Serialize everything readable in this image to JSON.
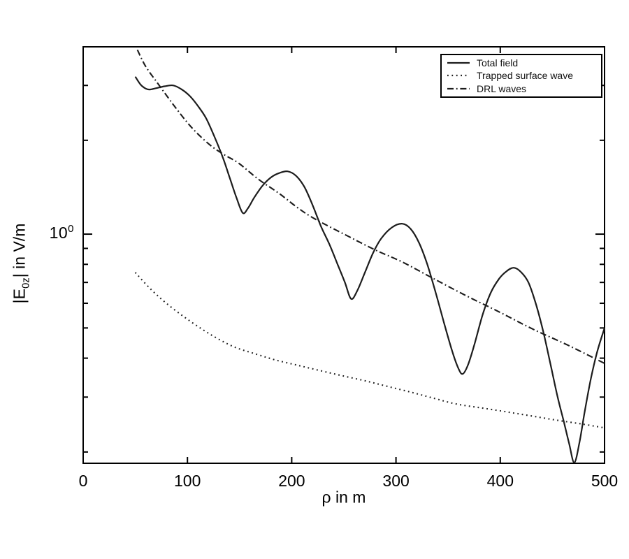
{
  "figure": {
    "background": "#ffffff",
    "axis_color": "#000000",
    "curve_color": "#1c1c1c"
  },
  "y_axis": {
    "tick_label": {
      "base": "10",
      "exponent": "0"
    },
    "label": {
      "prefix": "|E",
      "subscript": "0z",
      "suffix": "| in V/m"
    }
  },
  "x_axis": {
    "label": "ρ in m"
  },
  "chart_data": {
    "type": "line",
    "title": "",
    "xlabel": "ρ in m",
    "ylabel": "|E_0z| in V/m",
    "xscale": "linear",
    "yscale": "log",
    "xlim": [
      0,
      500
    ],
    "ylim": [
      0.184,
      3.99
    ],
    "x_ticks": [
      0,
      100,
      200,
      300,
      400,
      500
    ],
    "y_major_ticks": [
      1
    ],
    "y_minor_ticks": [
      0.2,
      0.3,
      0.4,
      0.5,
      0.6,
      0.7,
      0.8,
      0.9,
      2,
      3
    ],
    "grid": false,
    "legend_position": "top-right",
    "series": [
      {
        "name": "Total field",
        "style": "solid",
        "points": [
          [
            50,
            3.2
          ],
          [
            55,
            3.02
          ],
          [
            60,
            2.93
          ],
          [
            64,
            2.91
          ],
          [
            70,
            2.94
          ],
          [
            78,
            2.98
          ],
          [
            86,
            3.0
          ],
          [
            94,
            2.92
          ],
          [
            102,
            2.78
          ],
          [
            110,
            2.58
          ],
          [
            118,
            2.35
          ],
          [
            126,
            2.05
          ],
          [
            134,
            1.76
          ],
          [
            141,
            1.5
          ],
          [
            147,
            1.31
          ],
          [
            153,
            1.17
          ],
          [
            158,
            1.21
          ],
          [
            164,
            1.31
          ],
          [
            172,
            1.43
          ],
          [
            180,
            1.52
          ],
          [
            188,
            1.57
          ],
          [
            196,
            1.59
          ],
          [
            204,
            1.54
          ],
          [
            212,
            1.42
          ],
          [
            220,
            1.24
          ],
          [
            228,
            1.06
          ],
          [
            236,
            0.93
          ],
          [
            244,
            0.8
          ],
          [
            251,
            0.7
          ],
          [
            257,
            0.62
          ],
          [
            263,
            0.66
          ],
          [
            270,
            0.75
          ],
          [
            278,
            0.87
          ],
          [
            286,
            0.97
          ],
          [
            296,
            1.05
          ],
          [
            306,
            1.08
          ],
          [
            314,
            1.04
          ],
          [
            322,
            0.94
          ],
          [
            330,
            0.8
          ],
          [
            338,
            0.65
          ],
          [
            346,
            0.52
          ],
          [
            354,
            0.42
          ],
          [
            360,
            0.37
          ],
          [
            364,
            0.356
          ],
          [
            369,
            0.38
          ],
          [
            375,
            0.44
          ],
          [
            383,
            0.55
          ],
          [
            391,
            0.65
          ],
          [
            399,
            0.72
          ],
          [
            406,
            0.76
          ],
          [
            413,
            0.78
          ],
          [
            420,
            0.755
          ],
          [
            427,
            0.7
          ],
          [
            434,
            0.6
          ],
          [
            441,
            0.49
          ],
          [
            448,
            0.385
          ],
          [
            455,
            0.3
          ],
          [
            461,
            0.25
          ],
          [
            466,
            0.213
          ],
          [
            471,
            0.185
          ],
          [
            476,
            0.215
          ],
          [
            481,
            0.27
          ],
          [
            487,
            0.345
          ],
          [
            493,
            0.42
          ],
          [
            500,
            0.5
          ]
        ]
      },
      {
        "name": "Trapped surface wave",
        "style": "dotted",
        "points": [
          [
            50,
            0.753
          ],
          [
            64,
            0.67
          ],
          [
            79,
            0.603
          ],
          [
            96,
            0.545
          ],
          [
            113,
            0.498
          ],
          [
            129,
            0.462
          ],
          [
            146,
            0.433
          ],
          [
            165,
            0.413
          ],
          [
            184,
            0.395
          ],
          [
            205,
            0.38
          ],
          [
            227,
            0.365
          ],
          [
            249,
            0.351
          ],
          [
            271,
            0.338
          ],
          [
            293,
            0.324
          ],
          [
            316,
            0.31
          ],
          [
            337,
            0.297
          ],
          [
            358,
            0.285
          ],
          [
            382,
            0.277
          ],
          [
            406,
            0.269
          ],
          [
            430,
            0.261
          ],
          [
            454,
            0.253
          ],
          [
            478,
            0.246
          ],
          [
            500,
            0.239
          ]
        ]
      },
      {
        "name": "DRL waves",
        "style": "dashdot",
        "points": [
          [
            52,
            3.9
          ],
          [
            60,
            3.45
          ],
          [
            72,
            3.03
          ],
          [
            90,
            2.51
          ],
          [
            105,
            2.18
          ],
          [
            121,
            1.94
          ],
          [
            135,
            1.8
          ],
          [
            149,
            1.69
          ],
          [
            168,
            1.5
          ],
          [
            188,
            1.35
          ],
          [
            205,
            1.22
          ],
          [
            222,
            1.12
          ],
          [
            254,
            0.985
          ],
          [
            280,
            0.89
          ],
          [
            306,
            0.814
          ],
          [
            336,
            0.72
          ],
          [
            367,
            0.635
          ],
          [
            398,
            0.565
          ],
          [
            430,
            0.498
          ],
          [
            465,
            0.44
          ],
          [
            500,
            0.385
          ]
        ]
      }
    ]
  }
}
